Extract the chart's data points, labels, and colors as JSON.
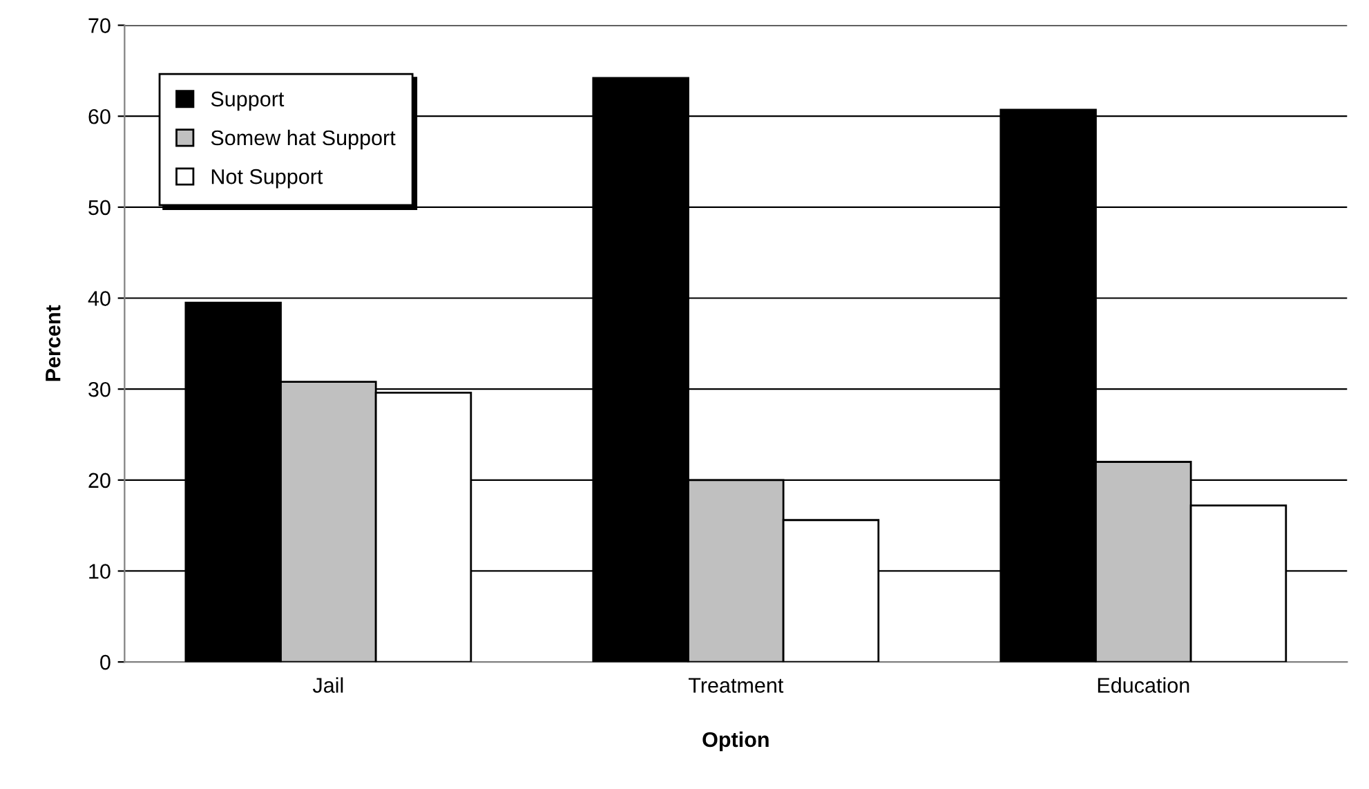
{
  "chart_data": {
    "type": "bar",
    "xlabel": "Option",
    "ylabel": "Percent",
    "categories": [
      "Jail",
      "Treatment",
      "Education"
    ],
    "series": [
      {
        "name": "Support",
        "color": "#000000",
        "values": [
          39.5,
          64.2,
          60.7
        ]
      },
      {
        "name": "Somew hat Support",
        "color": "#c0c0c0",
        "values": [
          30.8,
          20.0,
          22.0
        ]
      },
      {
        "name": "Not Support",
        "color": "#ffffff",
        "values": [
          29.6,
          15.6,
          17.2
        ]
      }
    ],
    "ylim": [
      0,
      70
    ],
    "yticks": [
      0,
      10,
      20,
      30,
      40,
      50,
      60,
      70
    ],
    "grid": "y",
    "legend": "top left"
  }
}
